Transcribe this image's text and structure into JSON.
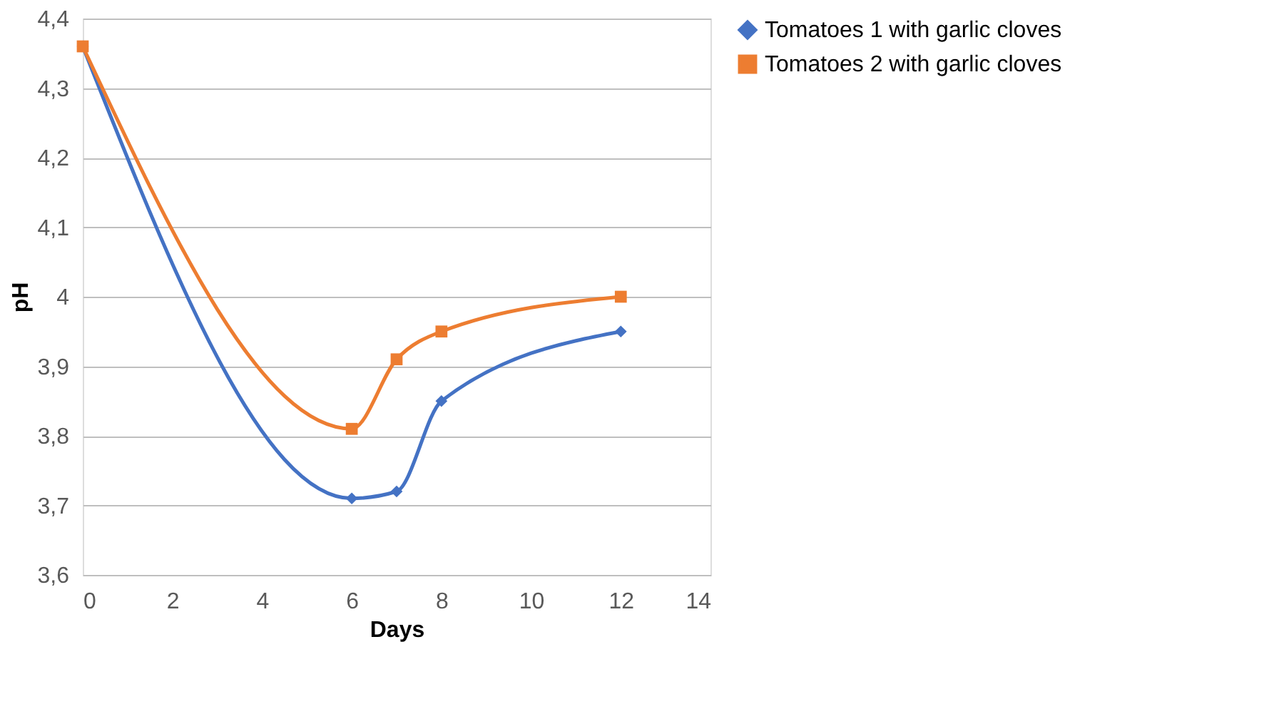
{
  "chart_data": {
    "type": "line",
    "xlabel": "Days",
    "ylabel": "pH",
    "x": [
      0,
      6,
      7,
      8,
      12
    ],
    "series": [
      {
        "name": "Tomatoes 1  with garlic cloves",
        "color": "#4472c4",
        "marker": "diamond",
        "values": [
          4.36,
          3.71,
          3.72,
          3.85,
          3.95
        ]
      },
      {
        "name": "Tomatoes 2 with garlic cloves",
        "color": "#ed7d31",
        "marker": "square",
        "values": [
          4.36,
          3.81,
          3.91,
          3.95,
          4.0
        ]
      }
    ],
    "xlim": [
      0,
      14
    ],
    "xticks": [
      0,
      2,
      4,
      6,
      8,
      10,
      12,
      14
    ],
    "ylim": [
      3.6,
      4.4
    ],
    "yticks": [
      {
        "value": 3.6,
        "label": "3,6"
      },
      {
        "value": 3.7,
        "label": "3,7"
      },
      {
        "value": 3.8,
        "label": "3,8"
      },
      {
        "value": 3.9,
        "label": "3,9"
      },
      {
        "value": 4,
        "label": "4"
      },
      {
        "value": 4.1,
        "label": "4,1"
      },
      {
        "value": 4.2,
        "label": "4,2"
      },
      {
        "value": 4.3,
        "label": "4,3"
      },
      {
        "value": 4.4,
        "label": "4,4"
      }
    ],
    "grid": "y",
    "legend": "right",
    "line_style": "solid"
  }
}
